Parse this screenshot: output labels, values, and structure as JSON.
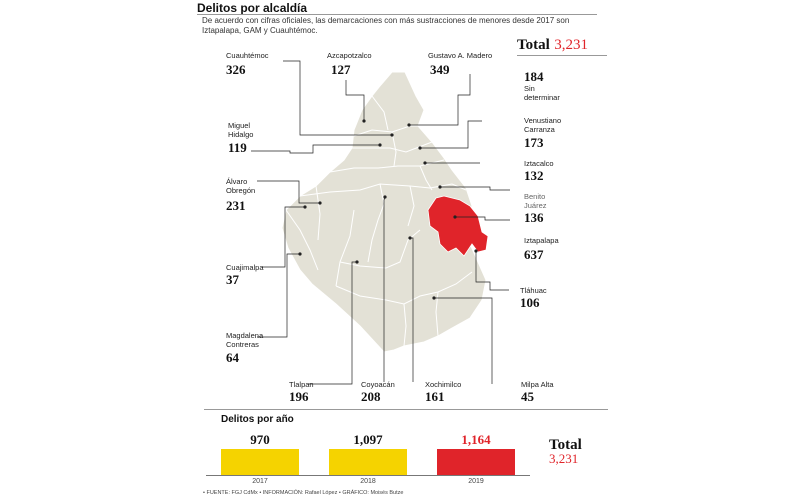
{
  "title": "Delitos por alcaldía",
  "subtitle": "De acuerdo con cifras oficiales, las demarcaciones con más sustracciones de menores desde 2017 son Iztapalapa, GAM y Cuauhtémoc.",
  "total": {
    "label": "Total",
    "value": "3,231"
  },
  "highlight_color": "#e0242a",
  "map_fill": "#e3e1d6",
  "alcaldias": {
    "cuauhtemoc": {
      "name": "Cuauhtémoc",
      "value": "326"
    },
    "azcapotzalco": {
      "name": "Azcapotzalco",
      "value": "127"
    },
    "gam": {
      "name": "Gustavo A. Madero",
      "value": "349"
    },
    "sin_determinar": {
      "name": "Sin determinar",
      "value": "184"
    },
    "miguel_hidalgo": {
      "name": "Miguel Hidalgo",
      "value": "119"
    },
    "venustiano": {
      "name": "Venustiano Carranza",
      "value": "173"
    },
    "iztacalco": {
      "name": "Iztacalco",
      "value": "132"
    },
    "alvaro": {
      "name": "Álvaro Obregón",
      "value": "231"
    },
    "benito": {
      "name": "Benito Juárez",
      "value": "136"
    },
    "iztapalapa": {
      "name": "Iztapalapa",
      "value": "637"
    },
    "cuajimalpa": {
      "name": "Cuajimalpa",
      "value": "37"
    },
    "tlahuac": {
      "name": "Tláhuac",
      "value": "106"
    },
    "magdalena": {
      "name": "Magdalena Contreras",
      "value": "64"
    },
    "tlalpan": {
      "name": "Tlalpan",
      "value": "196"
    },
    "coyoacan": {
      "name": "Coyoacán",
      "value": "208"
    },
    "xochimilco": {
      "name": "Xochimilco",
      "value": "161"
    },
    "milpa_alta": {
      "name": "Milpa Alta",
      "value": "45"
    }
  },
  "year_section": {
    "title": "Delitos por año",
    "total_label": "Total",
    "total_value": "3,231"
  },
  "chart_data": {
    "type": "bar",
    "title": "Delitos por año",
    "categories": [
      "2017",
      "2018",
      "2019"
    ],
    "values": [
      970,
      1097,
      1164
    ],
    "value_labels": [
      "970",
      "1,097",
      "1,164"
    ],
    "colors": [
      "#f5d300",
      "#f5d300",
      "#e0242a"
    ],
    "label_colors": [
      "#111111",
      "#111111",
      "#e0242a"
    ]
  },
  "footer": "• FUENTE: FGJ CdMx • INFORMACIÓN: Rafael López • GRÁFICO: Moisés Butze"
}
